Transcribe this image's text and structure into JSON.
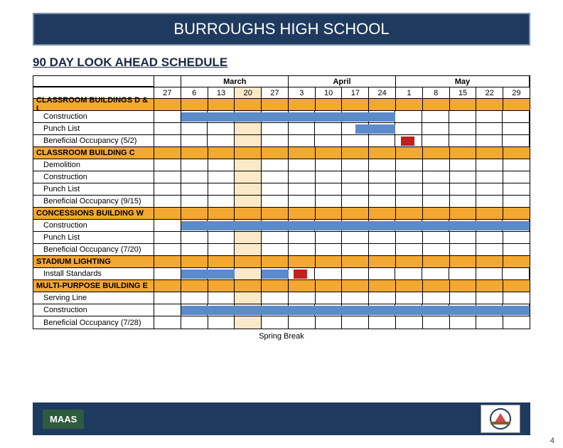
{
  "title": "BURROUGHS HIGH SCHOOL",
  "subtitle": "90 DAY LOOK AHEAD SCHEDULE",
  "months": [
    {
      "name": "",
      "span": 1
    },
    {
      "name": "March",
      "span": 4
    },
    {
      "name": "April",
      "span": 4
    },
    {
      "name": "May",
      "span": 5
    }
  ],
  "weeks": [
    "27",
    "6",
    "13",
    "20",
    "27",
    "3",
    "10",
    "17",
    "24",
    "1",
    "8",
    "15",
    "22",
    "29"
  ],
  "spring_break_col": 3,
  "sections": [
    {
      "label": "CLASSROOM BUILDINGS D & L",
      "type": "section"
    },
    {
      "label": "Construction",
      "type": "task",
      "indent": true,
      "bars": [
        {
          "start": 1,
          "end": 9,
          "color": "blue"
        }
      ]
    },
    {
      "label": "Punch List",
      "type": "task",
      "indent": true,
      "bars": [
        {
          "start": 7.5,
          "end": 9,
          "color": "blue"
        }
      ]
    },
    {
      "label": "Beneficial Occupancy   (5/2)",
      "type": "task",
      "indent": true,
      "bars": [
        {
          "start": 9.2,
          "end": 9.7,
          "color": "red"
        }
      ]
    },
    {
      "label": "CLASSROOM BUILDING C",
      "type": "section"
    },
    {
      "label": "Demolition",
      "type": "task",
      "indent": true,
      "bars": []
    },
    {
      "label": "Construction",
      "type": "task",
      "indent": true,
      "bars": []
    },
    {
      "label": "Punch List",
      "type": "task",
      "indent": true,
      "bars": []
    },
    {
      "label": "Beneficial Occupancy   (9/15)",
      "type": "task",
      "indent": true,
      "bars": []
    },
    {
      "label": "CONCESSIONS BUILDING W",
      "type": "section"
    },
    {
      "label": "Construction",
      "type": "task",
      "indent": true,
      "bars": [
        {
          "start": 1,
          "end": 14,
          "color": "blue"
        }
      ]
    },
    {
      "label": "Punch List",
      "type": "task",
      "indent": true,
      "bars": []
    },
    {
      "label": "Beneficial Occupancy   (7/20)",
      "type": "task",
      "indent": true,
      "bars": []
    },
    {
      "label": "STADIUM LIGHTING",
      "type": "section"
    },
    {
      "label": "Install Standards",
      "type": "task",
      "indent": true,
      "bars": [
        {
          "start": 1,
          "end": 3,
          "color": "blue"
        },
        {
          "start": 4,
          "end": 5,
          "color": "blue"
        },
        {
          "start": 5.2,
          "end": 5.7,
          "color": "red"
        }
      ]
    },
    {
      "label": "MULTI-PURPOSE BUILDING E",
      "type": "section"
    },
    {
      "label": "Serving Line",
      "type": "task",
      "indent": true,
      "bars": []
    },
    {
      "label": "Construction",
      "type": "task",
      "indent": true,
      "bars": [
        {
          "start": 1,
          "end": 14,
          "color": "blue"
        }
      ]
    },
    {
      "label": "Beneficial Occupancy  (7/28)",
      "type": "task",
      "indent": true,
      "bars": []
    }
  ],
  "caption": "Spring Break",
  "footer": {
    "left_logo": "MAAS"
  },
  "page_number": "4",
  "colors": {
    "header_bg": "#1f3a5f",
    "section_bg": "#f2a831",
    "bar_blue": "#5b8bc9",
    "bar_red": "#c32020",
    "spring_bg": "#fce9c7",
    "left_logo_bg": "#2e5a3e"
  }
}
